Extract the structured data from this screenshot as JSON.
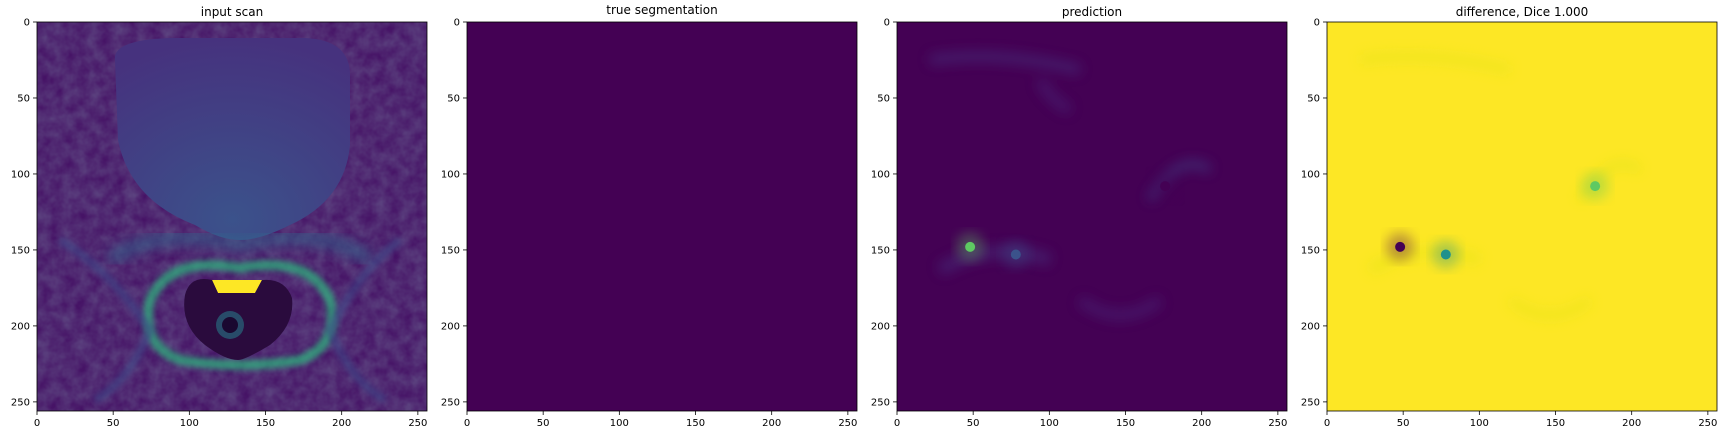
{
  "chart_data": [
    {
      "type": "heatmap",
      "title": "input scan",
      "colormap": "viridis",
      "xlim": [
        0,
        256
      ],
      "ylim": [
        256,
        0
      ],
      "xticks": [
        0,
        50,
        100,
        150,
        200,
        250
      ],
      "yticks": [
        0,
        50,
        100,
        150,
        200,
        250
      ],
      "content": "MRI pelvic scan intensities"
    },
    {
      "type": "heatmap",
      "title": "true segmentation",
      "colormap": "viridis",
      "xlim": [
        0,
        256
      ],
      "ylim": [
        256,
        0
      ],
      "xticks": [
        0,
        50,
        100,
        150,
        200,
        250
      ],
      "yticks": [
        0,
        50,
        100,
        150,
        200,
        250
      ],
      "uniform_value": 0
    },
    {
      "type": "heatmap",
      "title": "prediction",
      "colormap": "viridis",
      "xlim": [
        0,
        256
      ],
      "ylim": [
        256,
        0
      ],
      "xticks": [
        0,
        50,
        100,
        150,
        200,
        250
      ],
      "yticks": [
        0,
        50,
        100,
        150,
        200,
        250
      ],
      "hotspots": [
        {
          "x": 48,
          "y": 148,
          "value": 0.95
        },
        {
          "x": 78,
          "y": 153,
          "value": 0.35
        },
        {
          "x": 176,
          "y": 108,
          "value": 0.2
        }
      ]
    },
    {
      "type": "heatmap",
      "title": "difference, Dice 1.000",
      "colormap": "viridis",
      "xlim": [
        0,
        256
      ],
      "ylim": [
        256,
        0
      ],
      "xticks": [
        0,
        50,
        100,
        150,
        200,
        250
      ],
      "yticks": [
        0,
        50,
        100,
        150,
        200,
        250
      ],
      "coldspots": [
        {
          "x": 48,
          "y": 148,
          "value": 0.05
        },
        {
          "x": 78,
          "y": 153,
          "value": 0.65
        },
        {
          "x": 176,
          "y": 108,
          "value": 0.8
        }
      ]
    }
  ]
}
